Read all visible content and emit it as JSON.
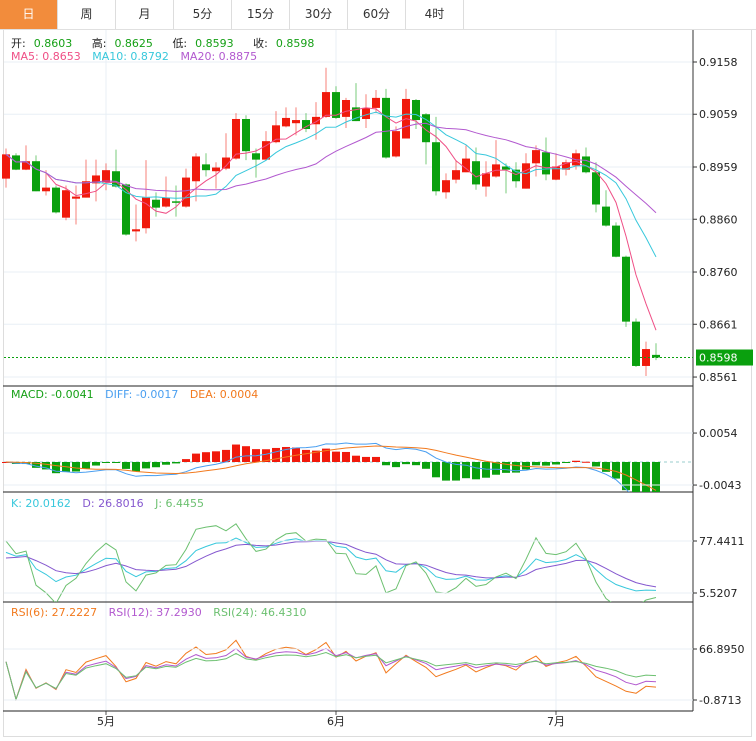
{
  "tabs": [
    {
      "label": "日",
      "active": true
    },
    {
      "label": "周"
    },
    {
      "label": "月"
    },
    {
      "label": "5分"
    },
    {
      "label": "15分"
    },
    {
      "label": "30分"
    },
    {
      "label": "60分"
    },
    {
      "label": "4时"
    }
  ],
  "ohlc_legend": {
    "open_label": "开:",
    "open": "0.8603",
    "high_label": "高:",
    "high": "0.8625",
    "low_label": "低:",
    "low": "0.8593",
    "close_label": "收:",
    "close": "0.8598"
  },
  "ma_legend": {
    "ma5": "MA5: 0.8653",
    "ma10": "MA10: 0.8792",
    "ma20": "MA20: 0.8875"
  },
  "macd_legend": {
    "macd": "MACD: -0.0041",
    "diff": "DIFF: -0.0017",
    "dea": "DEA: 0.0004"
  },
  "kdj_legend": {
    "k": "K: 20.0162",
    "d": "D: 26.8016",
    "j": "J: 6.4455"
  },
  "rsi_legend": {
    "rsi6": "RSI(6): 27.2227",
    "rsi12": "RSI(12): 37.2930",
    "rsi24": "RSI(24): 46.4310"
  },
  "colors": {
    "up": "#f01a0c",
    "down": "#0aa00e",
    "active_tab": "#f28c3c",
    "ma5": "#ef4f86",
    "ma10": "#38c8dc",
    "ma20": "#b259cf",
    "diff": "#4a9ff0",
    "dea": "#f27a1e",
    "k": "#38c8dc",
    "d": "#8558cf",
    "j": "#6cc070",
    "rsi6": "#f27a1e",
    "rsi12": "#b259cf",
    "rsi24": "#6cc070"
  },
  "chart_data": {
    "type": "candlestick",
    "price_axis_ticks": [
      "0.9158",
      "0.9059",
      "0.8959",
      "0.8860",
      "0.8760",
      "0.8661",
      "0.8561"
    ],
    "price_axis_range": [
      0.8561,
      0.9158
    ],
    "last_price": "0.8598",
    "macd_axis_ticks": [
      "0.0054",
      "-0.0043"
    ],
    "kdj_axis_ticks": [
      "77.4411",
      "5.5207"
    ],
    "rsi_axis_ticks": [
      "66.8950",
      "-0.8713"
    ],
    "x_labels": [
      {
        "label": "5月",
        "index": 10
      },
      {
        "label": "6月",
        "index": 33
      },
      {
        "label": "7月",
        "index": 55
      }
    ],
    "candles_ohlc": [
      [
        0.8937,
        0.8994,
        0.892,
        0.8983
      ],
      [
        0.8981,
        0.8985,
        0.8953,
        0.8954
      ],
      [
        0.8954,
        0.9,
        0.8953,
        0.897
      ],
      [
        0.897,
        0.8981,
        0.8913,
        0.8913
      ],
      [
        0.8913,
        0.8953,
        0.8905,
        0.892
      ],
      [
        0.892,
        0.8924,
        0.8871,
        0.8873
      ],
      [
        0.8863,
        0.8924,
        0.8858,
        0.8915
      ],
      [
        0.8899,
        0.8924,
        0.885,
        0.8903
      ],
      [
        0.8901,
        0.8973,
        0.8901,
        0.8932
      ],
      [
        0.8928,
        0.8973,
        0.8894,
        0.8943
      ],
      [
        0.893,
        0.8966,
        0.8915,
        0.8953
      ],
      [
        0.8951,
        0.8992,
        0.892,
        0.8922
      ],
      [
        0.8926,
        0.8928,
        0.8829,
        0.8831
      ],
      [
        0.8837,
        0.8888,
        0.8818,
        0.8841
      ],
      [
        0.8843,
        0.8972,
        0.8833,
        0.8901
      ],
      [
        0.8897,
        0.8911,
        0.8865,
        0.8882
      ],
      [
        0.8884,
        0.8941,
        0.8882,
        0.8901
      ],
      [
        0.8894,
        0.8924,
        0.8865,
        0.8892
      ],
      [
        0.8884,
        0.8956,
        0.8882,
        0.8939
      ],
      [
        0.8932,
        0.8985,
        0.8894,
        0.8979
      ],
      [
        0.8964,
        0.8985,
        0.8941,
        0.8953
      ],
      [
        0.8951,
        0.8968,
        0.8918,
        0.8958
      ],
      [
        0.8956,
        0.9023,
        0.8953,
        0.8977
      ],
      [
        0.8975,
        0.9061,
        0.8973,
        0.905
      ],
      [
        0.905,
        0.9057,
        0.8972,
        0.8989
      ],
      [
        0.8985,
        0.8994,
        0.8939,
        0.8973
      ],
      [
        0.8973,
        0.9027,
        0.8973,
        0.9008
      ],
      [
        0.9006,
        0.9065,
        0.9004,
        0.9038
      ],
      [
        0.9036,
        0.9072,
        0.9034,
        0.9052
      ],
      [
        0.9042,
        0.9072,
        0.9019,
        0.9048
      ],
      [
        0.9048,
        0.9061,
        0.9025,
        0.9031
      ],
      [
        0.904,
        0.9082,
        0.9011,
        0.9054
      ],
      [
        0.9054,
        0.9147,
        0.9052,
        0.9101
      ],
      [
        0.9101,
        0.9112,
        0.905,
        0.9052
      ],
      [
        0.9054,
        0.909,
        0.9033,
        0.9086
      ],
      [
        0.9072,
        0.9118,
        0.9046,
        0.9046
      ],
      [
        0.905,
        0.9097,
        0.9033,
        0.9071
      ],
      [
        0.9071,
        0.9105,
        0.9061,
        0.909
      ],
      [
        0.909,
        0.9107,
        0.8975,
        0.8977
      ],
      [
        0.8979,
        0.9036,
        0.8977,
        0.9027
      ],
      [
        0.9013,
        0.9107,
        0.9013,
        0.9088
      ],
      [
        0.9086,
        0.9088,
        0.9031,
        0.9048
      ],
      [
        0.9059,
        0.9061,
        0.8964,
        0.9006
      ],
      [
        0.9006,
        0.9054,
        0.8905,
        0.8913
      ],
      [
        0.8911,
        0.8947,
        0.8899,
        0.8934
      ],
      [
        0.8935,
        0.8972,
        0.8928,
        0.8953
      ],
      [
        0.8949,
        0.9,
        0.8949,
        0.8975
      ],
      [
        0.897,
        0.8996,
        0.8916,
        0.8926
      ],
      [
        0.8922,
        0.897,
        0.8903,
        0.8947
      ],
      [
        0.8941,
        0.901,
        0.8939,
        0.8964
      ],
      [
        0.896,
        0.8966,
        0.8909,
        0.8954
      ],
      [
        0.8954,
        0.8968,
        0.892,
        0.8932
      ],
      [
        0.8918,
        0.8985,
        0.8918,
        0.8966
      ],
      [
        0.8966,
        0.9,
        0.8941,
        0.8991
      ],
      [
        0.8987,
        0.9015,
        0.8934,
        0.8945
      ],
      [
        0.8935,
        0.8985,
        0.8934,
        0.896
      ],
      [
        0.8954,
        0.8973,
        0.8943,
        0.8968
      ],
      [
        0.8962,
        0.8992,
        0.8954,
        0.8985
      ],
      [
        0.8979,
        0.8996,
        0.8947,
        0.8949
      ],
      [
        0.8949,
        0.8968,
        0.8873,
        0.8888
      ],
      [
        0.8884,
        0.8915,
        0.8846,
        0.8848
      ],
      [
        0.8848,
        0.8854,
        0.8788,
        0.8789
      ],
      [
        0.8789,
        0.8791,
        0.8656,
        0.8666
      ],
      [
        0.8666,
        0.8672,
        0.858,
        0.8582
      ],
      [
        0.8582,
        0.8628,
        0.8563,
        0.8614
      ],
      [
        0.8603,
        0.8625,
        0.8593,
        0.8598
      ]
    ]
  }
}
